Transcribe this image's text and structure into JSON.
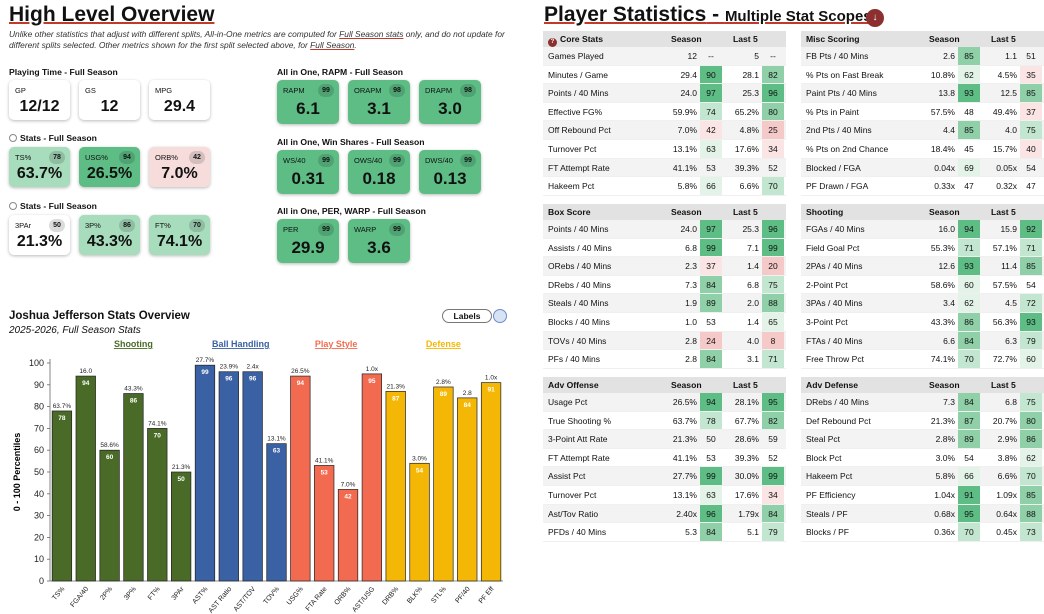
{
  "overview": {
    "title": "High Level Overview",
    "note_a": "Unlike other statistics that adjust with different splits, All-in-One metrics are computed for ",
    "note_link1": "Full Season stats",
    "note_b": " only, and do not update for different splits selected. Other metrics shown for the first split selected above, for ",
    "note_link2": "Full Season",
    "note_c": "."
  },
  "playing_time": {
    "label": "Playing Time - Full Season",
    "cards": [
      {
        "label": "GP",
        "value": "12/12"
      },
      {
        "label": "GS",
        "value": "12"
      },
      {
        "label": "MPG",
        "value": "29.4"
      }
    ]
  },
  "stats1": {
    "label": "Stats - Full Season",
    "cards": [
      {
        "label": "TS%",
        "value": "63.7%",
        "pct": "78"
      },
      {
        "label": "USG%",
        "value": "26.5%",
        "pct": "94"
      },
      {
        "label": "ORB%",
        "value": "7.0%",
        "pct": "42"
      }
    ]
  },
  "stats2": {
    "label": "Stats - Full Season",
    "cards": [
      {
        "label": "3PAr",
        "value": "21.3%",
        "pct": "50"
      },
      {
        "label": "3P%",
        "value": "43.3%",
        "pct": "86"
      },
      {
        "label": "FT%",
        "value": "74.1%",
        "pct": "70"
      }
    ]
  },
  "aio_rapm": {
    "label": "All in One, RAPM - Full Season",
    "cards": [
      {
        "label": "RAPM",
        "value": "6.1",
        "pct": "99"
      },
      {
        "label": "ORAPM",
        "value": "3.1",
        "pct": "98"
      },
      {
        "label": "DRAPM",
        "value": "3.0",
        "pct": "98"
      }
    ]
  },
  "aio_ws": {
    "label": "All in One, Win Shares - Full Season",
    "cards": [
      {
        "label": "WS/40",
        "value": "0.31",
        "pct": "99"
      },
      {
        "label": "OWS/40",
        "value": "0.18",
        "pct": "99"
      },
      {
        "label": "DWS/40",
        "value": "0.13",
        "pct": "99"
      }
    ]
  },
  "aio_per": {
    "label": "All in One, PER, WARP - Full Season",
    "cards": [
      {
        "label": "PER",
        "value": "29.9",
        "pct": "99"
      },
      {
        "label": "WARP",
        "value": "3.6",
        "pct": "99"
      }
    ]
  },
  "chart": {
    "title": "Joshua Jefferson Stats Overview",
    "subtitle": "2025-2026, Full Season Stats",
    "labels_button": "Labels"
  },
  "chart_data": {
    "type": "bar",
    "ylabel": "0 - 100 Percentiles",
    "ylim": [
      0,
      100
    ],
    "yticks": [
      0,
      10,
      20,
      30,
      40,
      50,
      60,
      70,
      80,
      90,
      100
    ],
    "groups": [
      {
        "name": "Shooting",
        "color": "#4a6b27",
        "start": 0,
        "end": 6
      },
      {
        "name": "Ball Handling",
        "color": "#3a61a3",
        "start": 6,
        "end": 9
      },
      {
        "name": "Play Style",
        "color": "#f26b50",
        "start": 10,
        "end": 13
      },
      {
        "name": "Defense",
        "color": "#f5b705",
        "start": 14,
        "end": 18
      }
    ],
    "categories": [
      "TS%",
      "FGA/40",
      "2P%",
      "3P%",
      "FT%",
      "3PAr",
      "AST%",
      "AST Ratio",
      "AST/TOV",
      "TOV%",
      "USG%",
      "FTA Rate",
      "ORB%",
      "AST/USG",
      "DRB%",
      "BLK%",
      "STL%",
      "PF/40",
      "PF Eff"
    ],
    "values": [
      78,
      94,
      60,
      86,
      70,
      50,
      99,
      96,
      96,
      63,
      94,
      53,
      42,
      95,
      87,
      54,
      89,
      84,
      91
    ],
    "raw_labels": [
      "63.7%",
      "16.0",
      "58.6%",
      "43.3%",
      "74.1%",
      "21.3%",
      "27.7%",
      "23.9%",
      "2.4x",
      "13.1%",
      "26.5%",
      "41.1%",
      "7.0%",
      "1.0x",
      "21.3%",
      "3.0%",
      "2.8%",
      "2.8",
      "1.0x"
    ],
    "colors": [
      "#4a6b27",
      "#4a6b27",
      "#4a6b27",
      "#4a6b27",
      "#4a6b27",
      "#4a6b27",
      "#3a61a3",
      "#3a61a3",
      "#3a61a3",
      "#3a61a3",
      "#f26b50",
      "#f26b50",
      "#f26b50",
      "#f26b50",
      "#f5b705",
      "#f5b705",
      "#f5b705",
      "#f5b705",
      "#f5b705"
    ]
  },
  "player_stats": {
    "title": "Player Statistics",
    "subtitle": "Multiple Stat Scopes",
    "tables": [
      {
        "name": "Core Stats",
        "icon": "core-stats-icon",
        "col1": "Season",
        "col2": "Last 5",
        "rows": [
          [
            "Games Played",
            "12",
            "--",
            "5",
            "--"
          ],
          [
            "Minutes / Game",
            "29.4",
            "90",
            "28.1",
            "82"
          ],
          [
            "Points / 40 Mins",
            "24.0",
            "97",
            "25.3",
            "96"
          ],
          [
            "Effective FG%",
            "59.9%",
            "74",
            "65.2%",
            "80"
          ],
          [
            "Off Rebound Pct",
            "7.0%",
            "42",
            "4.8%",
            "25"
          ],
          [
            "Turnover Pct",
            "13.1%",
            "63",
            "17.6%",
            "34"
          ],
          [
            "FT Attempt Rate",
            "41.1%",
            "53",
            "39.3%",
            "52"
          ],
          [
            "Hakeem Pct",
            "5.8%",
            "66",
            "6.6%",
            "70"
          ]
        ]
      },
      {
        "name": "Misc Scoring",
        "col1": "Season",
        "col2": "Last 5",
        "rows": [
          [
            "FB Pts / 40 Mins",
            "2.6",
            "85",
            "1.1",
            "51"
          ],
          [
            "% Pts on Fast Break",
            "10.8%",
            "62",
            "4.5%",
            "35"
          ],
          [
            "Paint Pts / 40 Mins",
            "13.8",
            "93",
            "12.5",
            "85"
          ],
          [
            "% Pts in Paint",
            "57.5%",
            "48",
            "49.4%",
            "37"
          ],
          [
            "2nd Pts / 40 Mins",
            "4.4",
            "85",
            "4.0",
            "75"
          ],
          [
            "% Pts on 2nd Chance",
            "18.4%",
            "45",
            "15.7%",
            "40"
          ],
          [
            "Blocked / FGA",
            "0.04x",
            "69",
            "0.05x",
            "54"
          ],
          [
            "PF Drawn / FGA",
            "0.33x",
            "47",
            "0.32x",
            "47"
          ]
        ]
      },
      {
        "name": "Box Score",
        "col1": "Season",
        "col2": "Last 5",
        "rows": [
          [
            "Points / 40 Mins",
            "24.0",
            "97",
            "25.3",
            "96"
          ],
          [
            "Assists / 40 Mins",
            "6.8",
            "99",
            "7.1",
            "99"
          ],
          [
            "ORebs / 40 Mins",
            "2.3",
            "37",
            "1.4",
            "20"
          ],
          [
            "DRebs / 40 Mins",
            "7.3",
            "84",
            "6.8",
            "75"
          ],
          [
            "Steals / 40 Mins",
            "1.9",
            "89",
            "2.0",
            "88"
          ],
          [
            "Blocks / 40 Mins",
            "1.0",
            "53",
            "1.4",
            "65"
          ],
          [
            "TOVs / 40 Mins",
            "2.8",
            "24",
            "4.0",
            "8"
          ],
          [
            "PFs / 40 Mins",
            "2.8",
            "84",
            "3.1",
            "71"
          ]
        ]
      },
      {
        "name": "Shooting",
        "col1": "Season",
        "col2": "Last 5",
        "rows": [
          [
            "FGAs / 40 Mins",
            "16.0",
            "94",
            "15.9",
            "92"
          ],
          [
            "Field Goal Pct",
            "55.3%",
            "71",
            "57.1%",
            "71"
          ],
          [
            "2PAs / 40 Mins",
            "12.6",
            "93",
            "11.4",
            "85"
          ],
          [
            "2-Point Pct",
            "58.6%",
            "60",
            "57.5%",
            "54"
          ],
          [
            "3PAs / 40 Mins",
            "3.4",
            "62",
            "4.5",
            "72"
          ],
          [
            "3-Point Pct",
            "43.3%",
            "86",
            "56.3%",
            "93"
          ],
          [
            "FTAs / 40 Mins",
            "6.6",
            "84",
            "6.3",
            "79"
          ],
          [
            "Free Throw Pct",
            "74.1%",
            "70",
            "72.7%",
            "60"
          ]
        ]
      },
      {
        "name": "Adv Offense",
        "col1": "Season",
        "col2": "Last 5",
        "rows": [
          [
            "Usage Pct",
            "26.5%",
            "94",
            "28.1%",
            "95"
          ],
          [
            "True Shooting %",
            "63.7%",
            "78",
            "67.7%",
            "82"
          ],
          [
            "3-Point Att Rate",
            "21.3%",
            "50",
            "28.6%",
            "59"
          ],
          [
            "FT Attempt Rate",
            "41.1%",
            "53",
            "39.3%",
            "52"
          ],
          [
            "Assist Pct",
            "27.7%",
            "99",
            "30.0%",
            "99"
          ],
          [
            "Turnover Pct",
            "13.1%",
            "63",
            "17.6%",
            "34"
          ],
          [
            "Ast/Tov Ratio",
            "2.40x",
            "96",
            "1.79x",
            "84"
          ],
          [
            "PFDs / 40 Mins",
            "5.3",
            "84",
            "5.1",
            "79"
          ]
        ]
      },
      {
        "name": "Adv Defense",
        "col1": "Season",
        "col2": "Last 5",
        "rows": [
          [
            "DRebs / 40 Mins",
            "7.3",
            "84",
            "6.8",
            "75"
          ],
          [
            "Def Rebound Pct",
            "21.3%",
            "87",
            "20.7%",
            "80"
          ],
          [
            "Steal Pct",
            "2.8%",
            "89",
            "2.9%",
            "86"
          ],
          [
            "Block Pct",
            "3.0%",
            "54",
            "3.8%",
            "62"
          ],
          [
            "Hakeem Pct",
            "5.8%",
            "66",
            "6.6%",
            "70"
          ],
          [
            "PF Efficiency",
            "1.04x",
            "91",
            "1.09x",
            "85"
          ],
          [
            "Steals / PF",
            "0.68x",
            "95",
            "0.64x",
            "88"
          ],
          [
            "Blocks / PF",
            "0.36x",
            "70",
            "0.45x",
            "73"
          ]
        ]
      }
    ]
  }
}
